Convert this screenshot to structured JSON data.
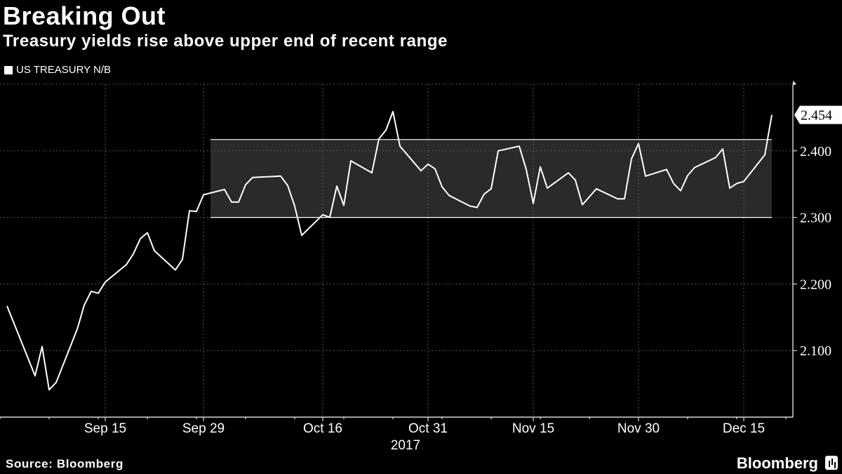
{
  "title": "Breaking Out",
  "subtitle": "Treasury yields rise above upper end of recent range",
  "legend_label": "US TREASURY N/B",
  "source": "Source: Bloomberg",
  "brand": "Bloomberg",
  "colors": {
    "background": "#000000",
    "line": "#ffffff",
    "band": "#2a2a2a",
    "grid": "#555555"
  },
  "chart_data": {
    "type": "line",
    "title": "Breaking Out",
    "subtitle": "Treasury yields rise above upper end of recent range",
    "ylim": [
      2.0,
      2.5
    ],
    "yticks": [
      2.1,
      2.2,
      2.3,
      2.4
    ],
    "ytick_labels": [
      "2.100",
      "2.200",
      "2.300",
      "2.400"
    ],
    "last_value_label": "2.454",
    "xticks": [
      {
        "date": "2017-09-15",
        "label": "Sep 15"
      },
      {
        "date": "2017-09-29",
        "label": "Sep 29"
      },
      {
        "date": "2017-10-16",
        "label": "Oct 16"
      },
      {
        "date": "2017-10-31",
        "label": "Oct 31"
      },
      {
        "date": "2017-11-15",
        "label": "Nov 15"
      },
      {
        "date": "2017-11-30",
        "label": "Nov 30"
      },
      {
        "date": "2017-12-15",
        "label": "Dec 15"
      }
    ],
    "year_label": "2017",
    "grid": true,
    "band": {
      "x_start": "2017-09-30",
      "x_end": "2017-12-19",
      "y_low": 2.3,
      "y_high": 2.417
    },
    "series": [
      {
        "name": "US TREASURY N/B",
        "x": [
          "2017-09-01",
          "2017-09-05",
          "2017-09-06",
          "2017-09-07",
          "2017-09-08",
          "2017-09-11",
          "2017-09-12",
          "2017-09-13",
          "2017-09-14",
          "2017-09-15",
          "2017-09-18",
          "2017-09-19",
          "2017-09-20",
          "2017-09-21",
          "2017-09-22",
          "2017-09-25",
          "2017-09-26",
          "2017-09-27",
          "2017-09-28",
          "2017-09-29",
          "2017-10-02",
          "2017-10-03",
          "2017-10-04",
          "2017-10-05",
          "2017-10-06",
          "2017-10-10",
          "2017-10-11",
          "2017-10-12",
          "2017-10-13",
          "2017-10-16",
          "2017-10-17",
          "2017-10-18",
          "2017-10-19",
          "2017-10-20",
          "2017-10-23",
          "2017-10-24",
          "2017-10-25",
          "2017-10-26",
          "2017-10-27",
          "2017-10-30",
          "2017-10-31",
          "2017-11-01",
          "2017-11-02",
          "2017-11-03",
          "2017-11-06",
          "2017-11-07",
          "2017-11-08",
          "2017-11-09",
          "2017-11-10",
          "2017-11-13",
          "2017-11-14",
          "2017-11-15",
          "2017-11-16",
          "2017-11-17",
          "2017-11-20",
          "2017-11-21",
          "2017-11-22",
          "2017-11-24",
          "2017-11-27",
          "2017-11-28",
          "2017-11-29",
          "2017-11-30",
          "2017-12-01",
          "2017-12-04",
          "2017-12-05",
          "2017-12-06",
          "2017-12-07",
          "2017-12-08",
          "2017-12-11",
          "2017-12-12",
          "2017-12-13",
          "2017-12-14",
          "2017-12-15",
          "2017-12-18",
          "2017-12-19"
        ],
        "values": [
          2.167,
          2.062,
          2.106,
          2.041,
          2.052,
          2.132,
          2.168,
          2.189,
          2.186,
          2.203,
          2.229,
          2.245,
          2.268,
          2.277,
          2.25,
          2.221,
          2.237,
          2.31,
          2.309,
          2.334,
          2.342,
          2.323,
          2.323,
          2.349,
          2.36,
          2.362,
          2.348,
          2.317,
          2.273,
          2.304,
          2.3,
          2.347,
          2.318,
          2.385,
          2.367,
          2.418,
          2.431,
          2.459,
          2.407,
          2.37,
          2.38,
          2.373,
          2.346,
          2.333,
          2.317,
          2.315,
          2.335,
          2.343,
          2.4,
          2.407,
          2.372,
          2.321,
          2.376,
          2.344,
          2.367,
          2.356,
          2.319,
          2.343,
          2.328,
          2.328,
          2.388,
          2.411,
          2.362,
          2.372,
          2.351,
          2.34,
          2.363,
          2.375,
          2.39,
          2.403,
          2.344,
          2.351,
          2.354,
          2.394,
          2.454
        ]
      }
    ]
  }
}
